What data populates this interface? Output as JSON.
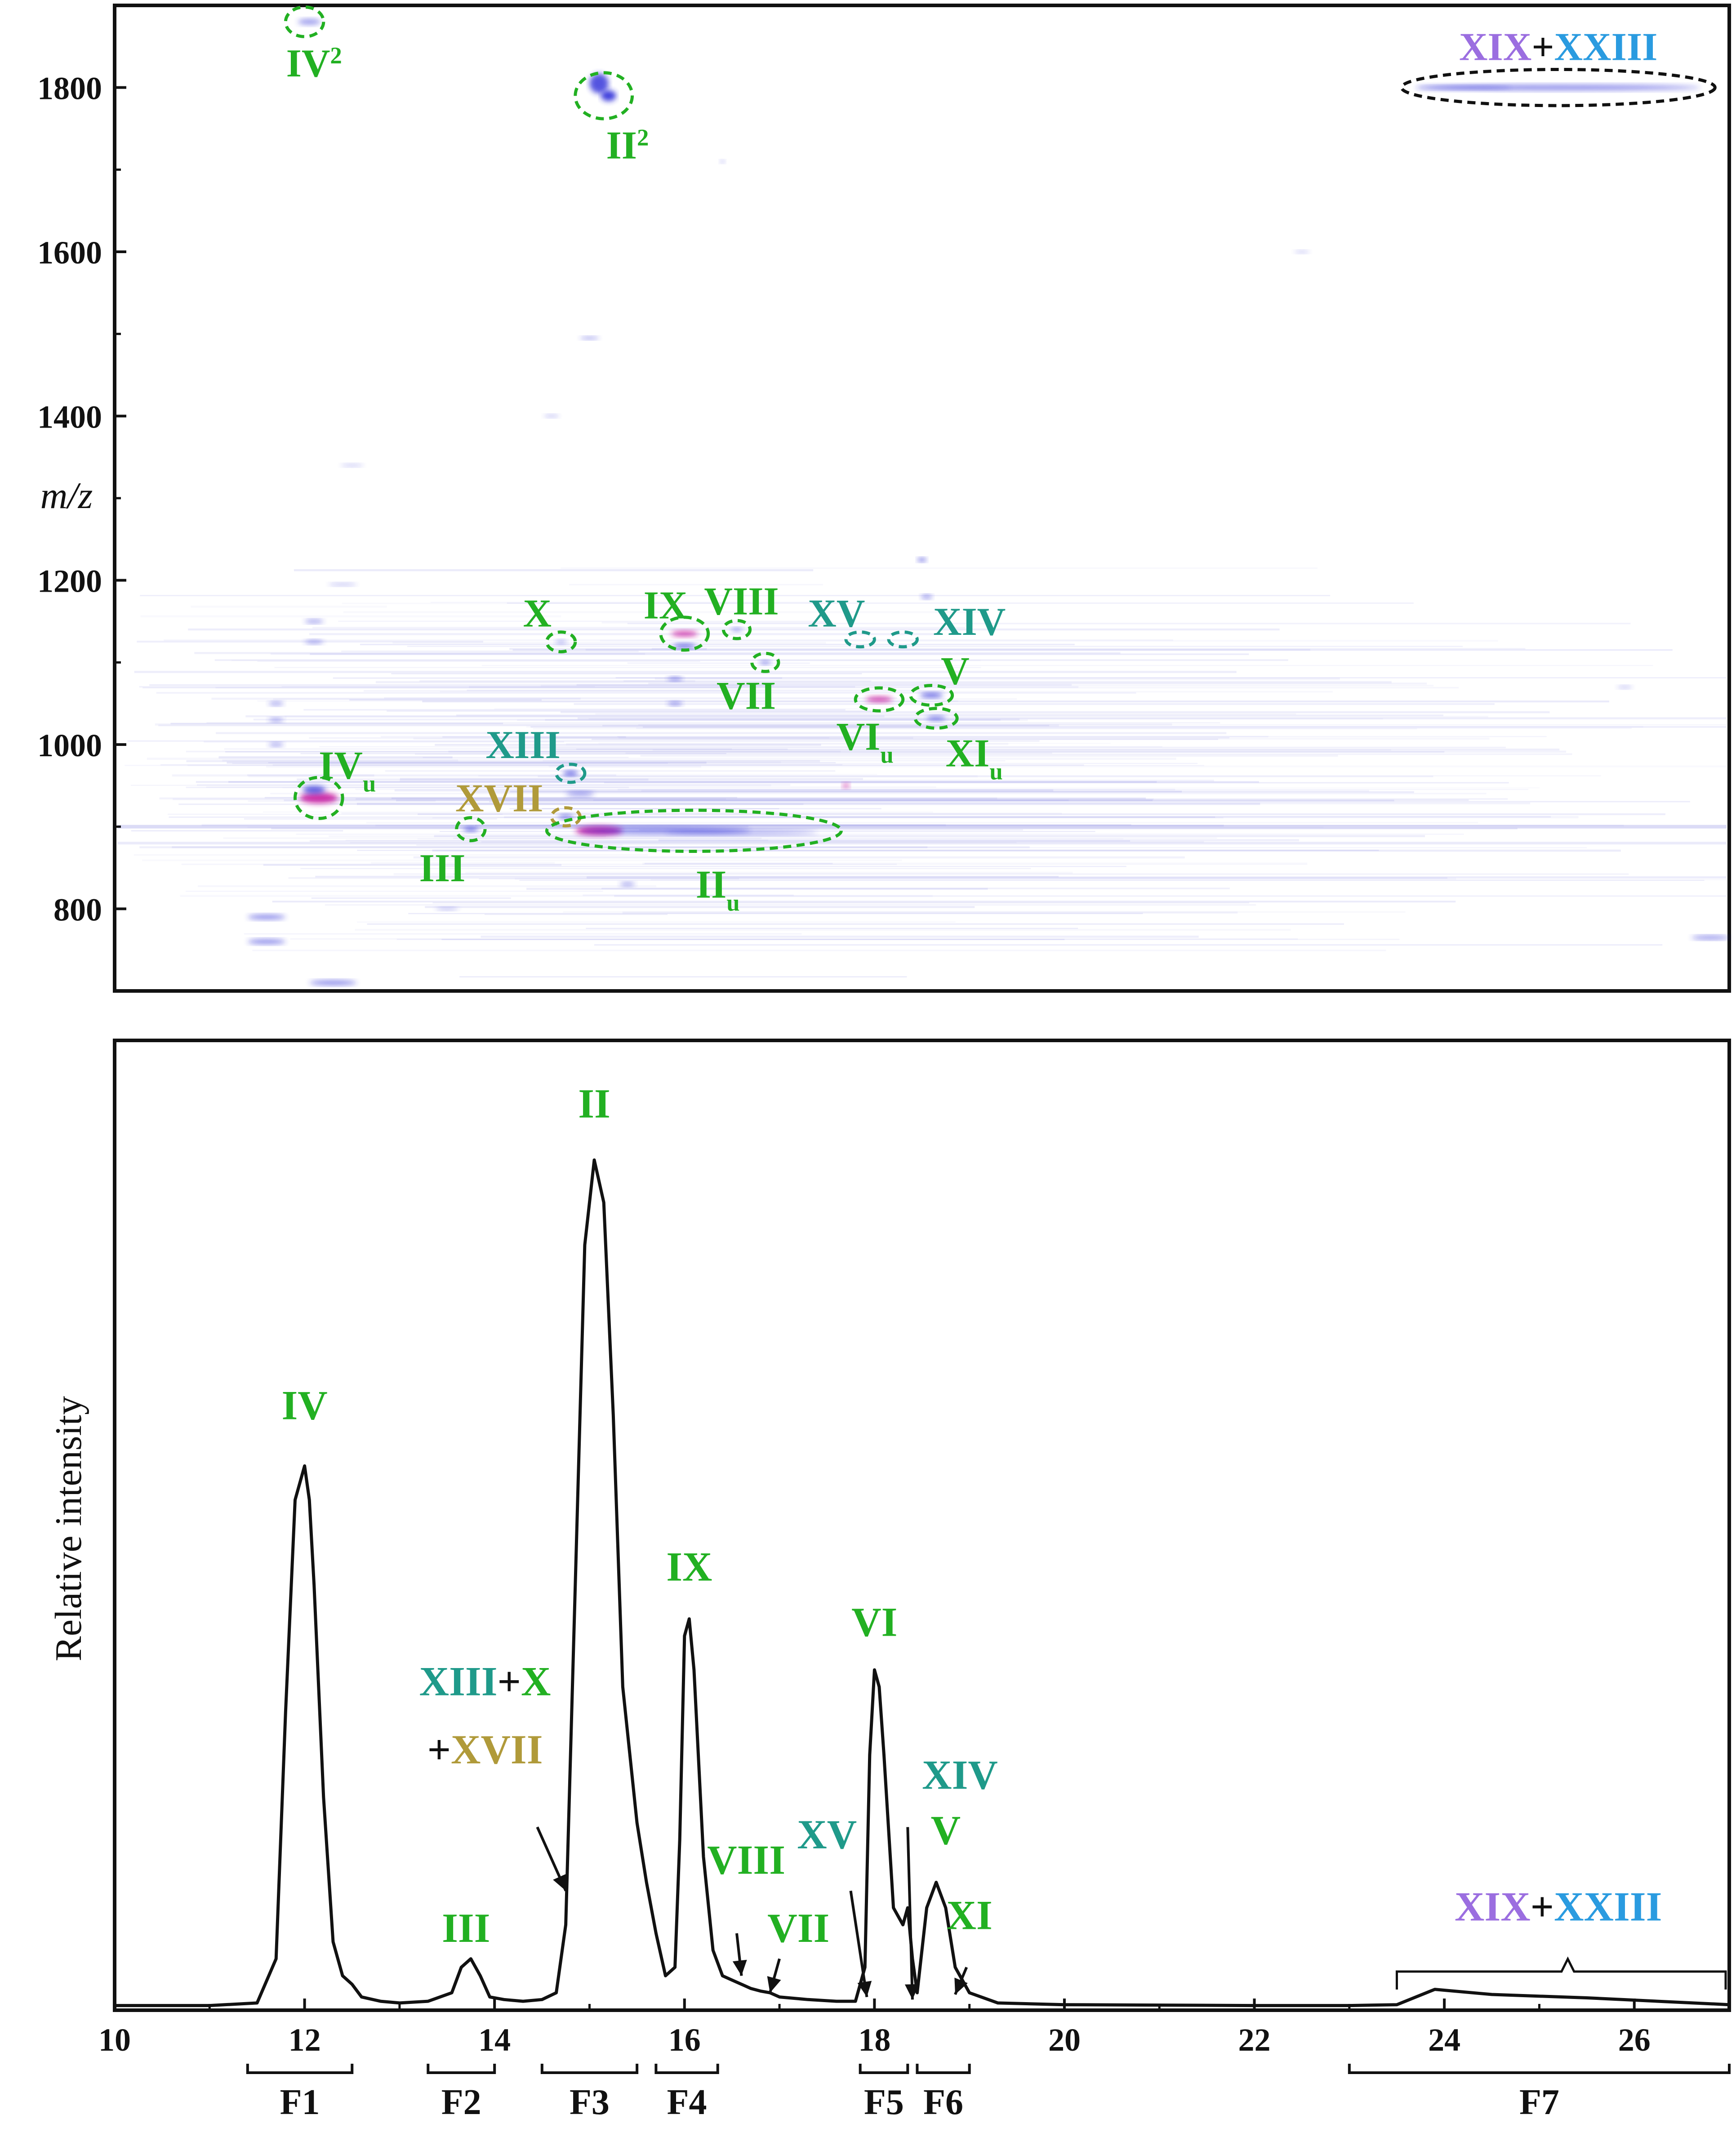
{
  "colors": {
    "green": "#22b022",
    "teal": "#1f9a8a",
    "olive": "#b09a3a",
    "violet": "#9b6ee0",
    "sky": "#2a9be0",
    "ink": "#111111",
    "spot": "#2a2ad8",
    "hot": "#c81aa0"
  },
  "chart_data": [
    {
      "type": "heatmap",
      "title": "",
      "xlabel": "",
      "ylabel": "m/z",
      "xlim": [
        10,
        27
      ],
      "ylim": [
        700,
        1900
      ],
      "yticks": [
        800,
        1000,
        1200,
        1400,
        1600,
        1800
      ],
      "yticks_text": [
        "800",
        "1000",
        "1200",
        "1400",
        "1600",
        "1800"
      ],
      "grid": false,
      "annotations": [
        {
          "id": "iv2",
          "parts": [
            {
              "t": "IV"
            },
            {
              "t": "2",
              "sup": true
            }
          ],
          "color": "green",
          "x": 12.0,
          "y": 1880,
          "rx": 0.2,
          "ry": 18,
          "lx": 12.1,
          "ly": 1830
        },
        {
          "id": "ii2",
          "parts": [
            {
              "t": "II"
            },
            {
              "t": "2",
              "sup": true
            }
          ],
          "color": "green",
          "x": 15.15,
          "y": 1790,
          "rx": 0.3,
          "ry": 28,
          "lx": 15.4,
          "ly": 1730
        },
        {
          "id": "xix-xxiii-top",
          "parts": [
            {
              "t": "XIX",
              "c": "violet"
            },
            {
              "t": "+",
              "c": "ink"
            },
            {
              "t": "XXIII",
              "c": "sky"
            }
          ],
          "color": "ink",
          "x": 25.2,
          "y": 1800,
          "rx": 1.65,
          "ry": 22,
          "lx": 25.2,
          "ly": 1850
        },
        {
          "id": "x",
          "parts": [
            {
              "t": "X"
            }
          ],
          "color": "green",
          "x": 14.7,
          "y": 1125,
          "rx": 0.15,
          "ry": 12,
          "lx": 14.45,
          "ly": 1160
        },
        {
          "id": "ix",
          "parts": [
            {
              "t": "IX"
            }
          ],
          "color": "green",
          "x": 16.0,
          "y": 1135,
          "rx": 0.25,
          "ry": 20,
          "lx": 15.8,
          "ly": 1170
        },
        {
          "id": "viii",
          "parts": [
            {
              "t": "VIII"
            }
          ],
          "color": "green",
          "x": 16.55,
          "y": 1140,
          "rx": 0.14,
          "ry": 11,
          "lx": 16.6,
          "ly": 1175
        },
        {
          "id": "vii",
          "parts": [
            {
              "t": "VII"
            }
          ],
          "color": "green",
          "x": 16.85,
          "y": 1100,
          "rx": 0.14,
          "ry": 11,
          "lx": 16.65,
          "ly": 1060
        },
        {
          "id": "xv",
          "parts": [
            {
              "t": "XV"
            }
          ],
          "color": "teal",
          "x": 17.85,
          "y": 1128,
          "rx": 0.15,
          "ry": 9,
          "lx": 17.6,
          "ly": 1160
        },
        {
          "id": "xiv",
          "parts": [
            {
              "t": "XIV"
            }
          ],
          "color": "teal",
          "x": 18.3,
          "y": 1128,
          "rx": 0.15,
          "ry": 9,
          "lx": 19.0,
          "ly": 1150
        },
        {
          "id": "v",
          "parts": [
            {
              "t": "V"
            }
          ],
          "color": "green",
          "x": 18.6,
          "y": 1060,
          "rx": 0.22,
          "ry": 12,
          "lx": 18.85,
          "ly": 1090
        },
        {
          "id": "viu",
          "parts": [
            {
              "t": "VI"
            },
            {
              "t": "u",
              "sub": true
            }
          ],
          "color": "green",
          "x": 18.05,
          "y": 1055,
          "rx": 0.25,
          "ry": 14,
          "lx": 17.9,
          "ly": 1010
        },
        {
          "id": "xiu",
          "parts": [
            {
              "t": "XI"
            },
            {
              "t": "u",
              "sub": true
            }
          ],
          "color": "green",
          "x": 18.65,
          "y": 1032,
          "rx": 0.22,
          "ry": 12,
          "lx": 19.05,
          "ly": 990
        },
        {
          "id": "xiii",
          "parts": [
            {
              "t": "XIII"
            }
          ],
          "color": "teal",
          "x": 14.8,
          "y": 965,
          "rx": 0.15,
          "ry": 11,
          "lx": 14.3,
          "ly": 1000
        },
        {
          "id": "ivu",
          "parts": [
            {
              "t": "IV"
            },
            {
              "t": "u",
              "sub": true
            }
          ],
          "color": "green",
          "x": 12.15,
          "y": 935,
          "rx": 0.25,
          "ry": 25,
          "lx": 12.45,
          "ly": 975
        },
        {
          "id": "xvii",
          "parts": [
            {
              "t": "XVII"
            }
          ],
          "color": "olive",
          "x": 14.75,
          "y": 912,
          "rx": 0.15,
          "ry": 11,
          "lx": 14.05,
          "ly": 935
        },
        {
          "id": "iii",
          "parts": [
            {
              "t": "III"
            }
          ],
          "color": "green",
          "x": 13.75,
          "y": 897,
          "rx": 0.15,
          "ry": 14,
          "lx": 13.45,
          "ly": 850
        },
        {
          "id": "iiu",
          "parts": [
            {
              "t": "II"
            },
            {
              "t": "u",
              "sub": true
            }
          ],
          "color": "green",
          "x": 16.1,
          "y": 895,
          "rx": 1.55,
          "ry": 25,
          "lx": 16.35,
          "ly": 830
        }
      ]
    },
    {
      "type": "line",
      "title": "",
      "xlabel": "",
      "ylabel": "Relative intensity",
      "xlim": [
        10,
        27
      ],
      "ylim": [
        0,
        1.1
      ],
      "xticks": [
        10,
        12,
        14,
        16,
        18,
        20,
        22,
        24,
        26
      ],
      "xticks_text": [
        "10",
        "12",
        "14",
        "16",
        "18",
        "20",
        "22",
        "24",
        "26"
      ],
      "grid": false,
      "series": [
        {
          "x": [
            10.0,
            11.0,
            11.5,
            11.7,
            11.8,
            11.9,
            12.0,
            12.05,
            12.1,
            12.2,
            12.3,
            12.4,
            12.5,
            12.6,
            12.8,
            13.0,
            13.3,
            13.55,
            13.65,
            13.75,
            13.85,
            13.95,
            14.1,
            14.3,
            14.5,
            14.65,
            14.75,
            14.85,
            14.95,
            15.05,
            15.15,
            15.25,
            15.35,
            15.5,
            15.6,
            15.7,
            15.8,
            15.9,
            15.95,
            16.0,
            16.05,
            16.1,
            16.2,
            16.3,
            16.4,
            16.5,
            16.6,
            16.7,
            16.8,
            16.9,
            17.0,
            17.3,
            17.6,
            17.8,
            17.9,
            17.95,
            18.0,
            18.05,
            18.1,
            18.2,
            18.3,
            18.35,
            18.4,
            18.45,
            18.55,
            18.65,
            18.75,
            18.85,
            19.0,
            19.3,
            20.0,
            22.0,
            23.0,
            23.5,
            23.9,
            24.5,
            25.5,
            27.0
          ],
          "y": [
            0.005,
            0.005,
            0.008,
            0.06,
            0.35,
            0.6,
            0.64,
            0.6,
            0.5,
            0.25,
            0.08,
            0.04,
            0.03,
            0.015,
            0.01,
            0.008,
            0.01,
            0.02,
            0.05,
            0.06,
            0.04,
            0.015,
            0.012,
            0.01,
            0.012,
            0.02,
            0.1,
            0.5,
            0.9,
            1.0,
            0.95,
            0.7,
            0.38,
            0.22,
            0.15,
            0.09,
            0.04,
            0.05,
            0.2,
            0.44,
            0.46,
            0.4,
            0.18,
            0.07,
            0.04,
            0.035,
            0.03,
            0.025,
            0.022,
            0.02,
            0.015,
            0.012,
            0.01,
            0.01,
            0.05,
            0.3,
            0.4,
            0.38,
            0.3,
            0.12,
            0.1,
            0.12,
            0.06,
            0.02,
            0.12,
            0.15,
            0.12,
            0.05,
            0.02,
            0.008,
            0.006,
            0.005,
            0.005,
            0.006,
            0.024,
            0.018,
            0.014,
            0.006
          ]
        }
      ],
      "peak_labels": [
        {
          "id": "iv",
          "parts": [
            {
              "t": "IV",
              "c": "green"
            }
          ],
          "x": 12.0,
          "y": 0.695
        },
        {
          "id": "ii",
          "parts": [
            {
              "t": "II",
              "c": "green"
            }
          ],
          "x": 15.05,
          "y": 1.05
        },
        {
          "id": "ix",
          "parts": [
            {
              "t": "IX",
              "c": "green"
            }
          ],
          "x": 16.05,
          "y": 0.505
        },
        {
          "id": "vi",
          "parts": [
            {
              "t": "VI",
              "c": "green"
            }
          ],
          "x": 18.0,
          "y": 0.44
        },
        {
          "id": "iii",
          "parts": [
            {
              "t": "III",
              "c": "green"
            }
          ],
          "x": 13.7,
          "y": 0.08
        },
        {
          "id": "v",
          "parts": [
            {
              "t": "V",
              "c": "green"
            }
          ],
          "x": 18.75,
          "y": 0.195
        },
        {
          "id": "xiv",
          "parts": [
            {
              "t": "XIV",
              "c": "teal"
            }
          ],
          "x": 18.9,
          "y": 0.26
        },
        {
          "id": "xv",
          "parts": [
            {
              "t": "XV",
              "c": "teal"
            }
          ],
          "x": 17.5,
          "y": 0.19
        },
        {
          "id": "viii",
          "parts": [
            {
              "t": "VIII",
              "c": "green"
            }
          ],
          "x": 16.65,
          "y": 0.16
        },
        {
          "id": "vii",
          "parts": [
            {
              "t": "VII",
              "c": "green"
            }
          ],
          "x": 17.2,
          "y": 0.08
        },
        {
          "id": "xi",
          "parts": [
            {
              "t": "XI",
              "c": "green"
            }
          ],
          "x": 19.0,
          "y": 0.095
        },
        {
          "id": "xiii-x",
          "parts": [
            {
              "t": "XIII",
              "c": "teal"
            },
            {
              "t": "+",
              "c": "ink"
            },
            {
              "t": "X",
              "c": "green"
            }
          ],
          "x": 13.9,
          "y": 0.37
        },
        {
          "id": "xvii",
          "parts": [
            {
              "t": "+",
              "c": "ink"
            },
            {
              "t": "XVII",
              "c": "olive"
            }
          ],
          "x": 13.9,
          "y": 0.29
        },
        {
          "id": "xix-xxiii",
          "parts": [
            {
              "t": "XIX",
              "c": "violet"
            },
            {
              "t": "+",
              "c": "ink"
            },
            {
              "t": "XXIII",
              "c": "sky"
            }
          ],
          "x": 25.2,
          "y": 0.105
        }
      ],
      "arrows": [
        {
          "from": [
            14.45,
            0.215
          ],
          "to": [
            14.75,
            0.14
          ]
        },
        {
          "from": [
            16.55,
            0.09
          ],
          "to": [
            16.6,
            0.04
          ]
        },
        {
          "from": [
            17.0,
            0.06
          ],
          "to": [
            16.9,
            0.02
          ]
        },
        {
          "from": [
            17.75,
            0.14
          ],
          "to": [
            17.92,
            0.015
          ]
        },
        {
          "from": [
            18.35,
            0.215
          ],
          "to": [
            18.4,
            0.012
          ]
        },
        {
          "from": [
            18.97,
            0.05
          ],
          "to": [
            18.85,
            0.018
          ]
        }
      ],
      "fractions": [
        {
          "label": "F1",
          "x0": 11.4,
          "x1": 12.5
        },
        {
          "label": "F2",
          "x0": 13.3,
          "x1": 14.0
        },
        {
          "label": "F3",
          "x0": 14.5,
          "x1": 15.5
        },
        {
          "label": "F4",
          "x0": 15.7,
          "x1": 16.35
        },
        {
          "label": "F5",
          "x0": 17.85,
          "x1": 18.35
        },
        {
          "label": "F6",
          "x0": 18.45,
          "x1": 19.0
        },
        {
          "label": "F7",
          "x0": 23.0,
          "x1": 27.0
        }
      ],
      "brace": {
        "x0": 23.5,
        "x1": 27.0,
        "y": 0.045,
        "tip": 25.3
      }
    }
  ]
}
